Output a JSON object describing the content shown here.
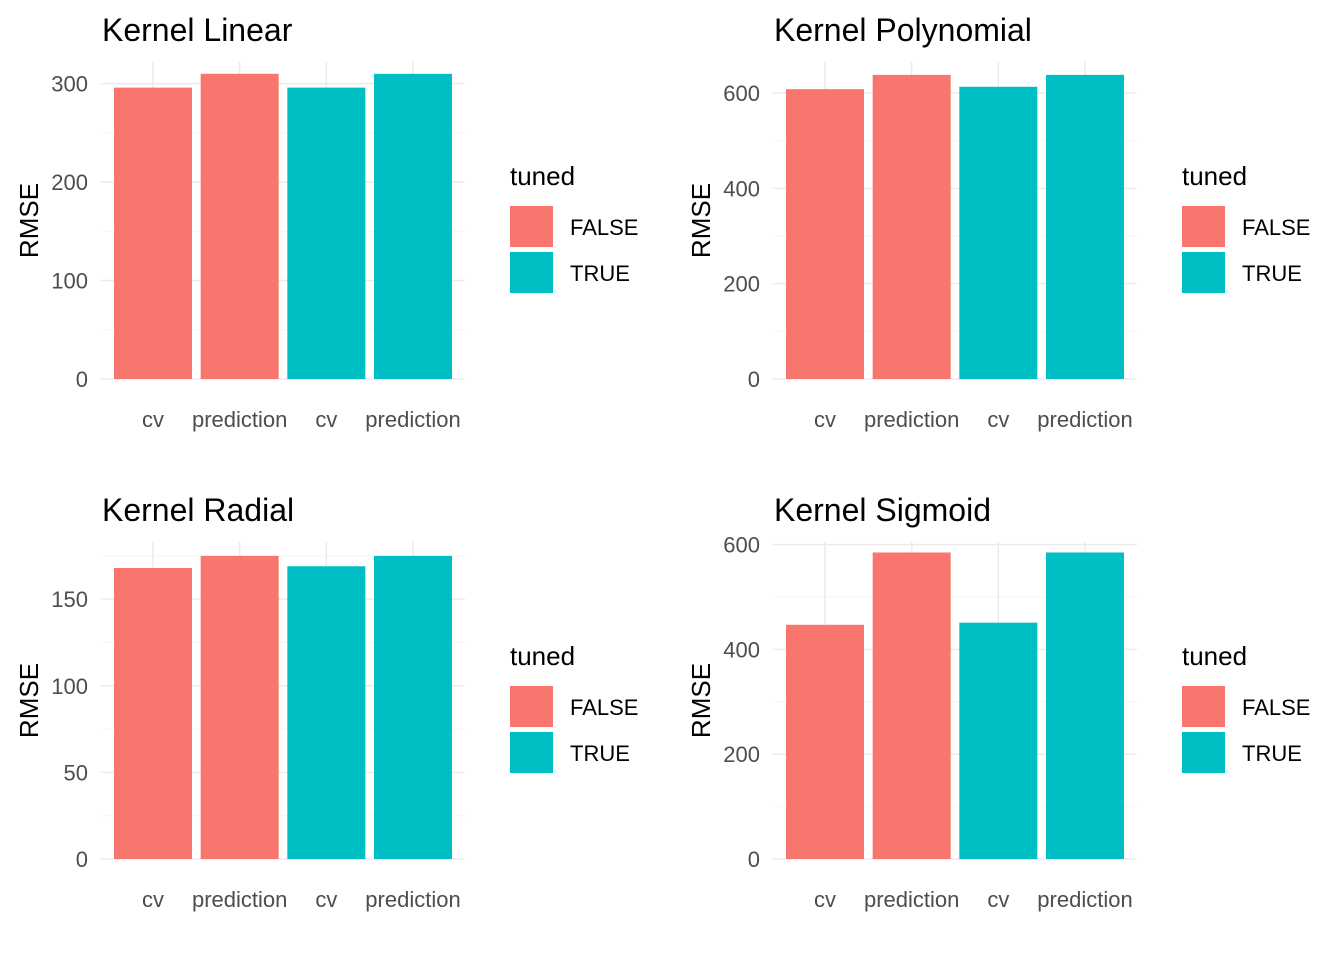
{
  "chart_data": [
    {
      "type": "bar",
      "title": "Kernel Linear",
      "xlabel": "",
      "ylabel": "RMSE",
      "categories": [
        "cv",
        "prediction",
        "cv",
        "prediction"
      ],
      "tuned": [
        "FALSE",
        "FALSE",
        "TRUE",
        "TRUE"
      ],
      "values": [
        296,
        310,
        296,
        310
      ],
      "ylim": [
        0,
        322
      ],
      "yticks": [
        0,
        100,
        200,
        300
      ],
      "yminor": [
        50,
        150,
        250
      ],
      "grid": true,
      "legend": {
        "title": "tuned",
        "position": "right",
        "entries": [
          "FALSE",
          "TRUE"
        ]
      }
    },
    {
      "type": "bar",
      "title": "Kernel Polynomial",
      "xlabel": "",
      "ylabel": "RMSE",
      "categories": [
        "cv",
        "prediction",
        "cv",
        "prediction"
      ],
      "tuned": [
        "FALSE",
        "FALSE",
        "TRUE",
        "TRUE"
      ],
      "values": [
        608,
        638,
        613,
        638
      ],
      "ylim": [
        0,
        665
      ],
      "yticks": [
        0,
        200,
        400,
        600
      ],
      "yminor": [
        100,
        300,
        500
      ],
      "grid": true,
      "legend": {
        "title": "tuned",
        "position": "right",
        "entries": [
          "FALSE",
          "TRUE"
        ]
      }
    },
    {
      "type": "bar",
      "title": "Kernel Radial",
      "xlabel": "",
      "ylabel": "RMSE",
      "categories": [
        "cv",
        "prediction",
        "cv",
        "prediction"
      ],
      "tuned": [
        "FALSE",
        "FALSE",
        "TRUE",
        "TRUE"
      ],
      "values": [
        168,
        175,
        169,
        175
      ],
      "ylim": [
        0,
        183
      ],
      "yticks": [
        0,
        50,
        100,
        150
      ],
      "yminor": [
        25,
        75,
        125,
        175
      ],
      "grid": true,
      "legend": {
        "title": "tuned",
        "position": "right",
        "entries": [
          "FALSE",
          "TRUE"
        ]
      }
    },
    {
      "type": "bar",
      "title": "Kernel Sigmoid",
      "xlabel": "",
      "ylabel": "RMSE",
      "categories": [
        "cv",
        "prediction",
        "cv",
        "prediction"
      ],
      "tuned": [
        "FALSE",
        "FALSE",
        "TRUE",
        "TRUE"
      ],
      "values": [
        447,
        585,
        451,
        585
      ],
      "ylim": [
        0,
        605
      ],
      "yticks": [
        0,
        200,
        400,
        600
      ],
      "yminor": [
        100,
        300,
        500
      ],
      "grid": true,
      "legend": {
        "title": "tuned",
        "position": "right",
        "entries": [
          "FALSE",
          "TRUE"
        ]
      }
    }
  ],
  "colors": {
    "FALSE": "#F8766D",
    "TRUE": "#00BFC4",
    "grid_major": "#ebebeb",
    "grid_minor": "#f5f5f5",
    "tick_text": "#4d4d4d",
    "text": "#000000"
  }
}
